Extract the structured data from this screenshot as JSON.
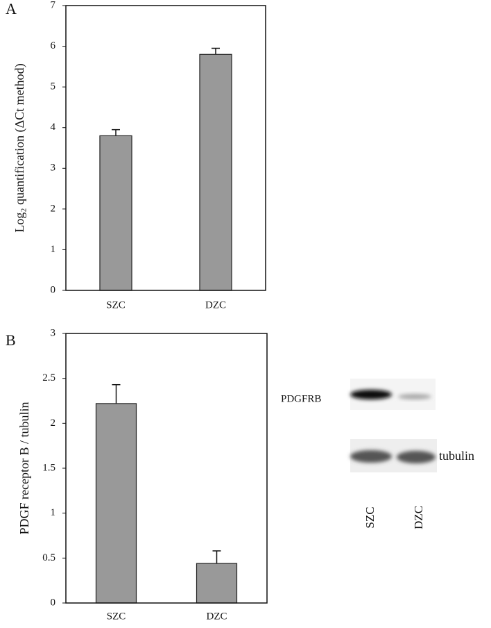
{
  "chart_data": [
    {
      "type": "bar",
      "panel_label": "A",
      "y_label": "Log₂ quantification (ΔCt method)",
      "categories": [
        "SZC",
        "DZC"
      ],
      "values": [
        3.8,
        5.8
      ],
      "errors": [
        0.15,
        0.15
      ],
      "color": "#999999",
      "ylim": [
        0,
        7
      ],
      "yticks": [
        0,
        1,
        2,
        3,
        4,
        5,
        6,
        7
      ]
    },
    {
      "type": "bar",
      "panel_label": "B",
      "y_label": "PDGF receptor B / tubulin",
      "categories": [
        "SZC",
        "DZC"
      ],
      "values": [
        2.22,
        0.44
      ],
      "errors": [
        0.21,
        0.14
      ],
      "color": "#999999",
      "ylim": [
        0,
        3
      ],
      "yticks": [
        0,
        0.5,
        1,
        1.5,
        2,
        2.5,
        3
      ]
    }
  ],
  "blot": {
    "row_labels": [
      "PDGFRB",
      "tubulin"
    ],
    "lane_labels": [
      "SZC",
      "DZC"
    ]
  }
}
